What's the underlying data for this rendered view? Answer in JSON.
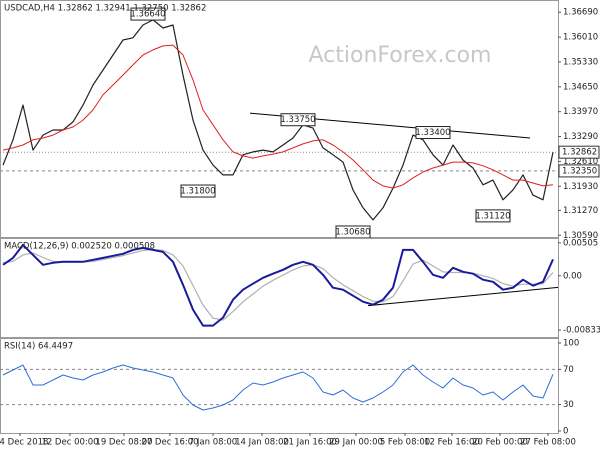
{
  "chart_data": [
    {
      "type": "line",
      "header": "USDCAD,H4  1.32862 1.32941 1.32750 1.32862",
      "watermark": "ActionForex.com",
      "xlim": [
        -0.3,
        55.5
      ],
      "ylim": [
        1.3057,
        1.3697
      ],
      "yticks": [
        {
          "value": 1.3669,
          "label": "1.36690"
        },
        {
          "value": 1.3601,
          "label": "1.36010"
        },
        {
          "value": 1.3533,
          "label": "1.35330"
        },
        {
          "value": 1.3465,
          "label": "1.34650"
        },
        {
          "value": 1.3397,
          "label": "1.33970"
        },
        {
          "value": 1.3329,
          "label": "1.33290"
        },
        {
          "value": 1.3261,
          "label": "1.32610"
        },
        {
          "value": 1.3193,
          "label": "1.31930"
        },
        {
          "value": 1.3127,
          "label": "1.31270"
        },
        {
          "value": 1.3059,
          "label": "1.30590"
        }
      ],
      "x": [
        0,
        1,
        2,
        3,
        4,
        5,
        6,
        7,
        8,
        9,
        10,
        11,
        12,
        13,
        14,
        15,
        16,
        17,
        18,
        19,
        20,
        21,
        22,
        23,
        24,
        25,
        26,
        27,
        28,
        29,
        30,
        31,
        32,
        33,
        34,
        35,
        36,
        37,
        38,
        39,
        40,
        41,
        42,
        43,
        44,
        45,
        46,
        47,
        48,
        49,
        50,
        51,
        52,
        53,
        54,
        55
      ],
      "series": [
        {
          "color": "#222222",
          "width": 1.2,
          "values": [
            1.3251,
            1.332,
            1.3415,
            1.3292,
            1.3333,
            1.3347,
            1.3347,
            1.3369,
            1.3415,
            1.347,
            1.3511,
            1.3552,
            1.3593,
            1.3599,
            1.3634,
            1.3648,
            1.3626,
            1.3634,
            1.3497,
            1.3374,
            1.3292,
            1.3251,
            1.3224,
            1.3224,
            1.3279,
            1.3287,
            1.3292,
            1.3287,
            1.3306,
            1.3325,
            1.3361,
            1.3352,
            1.3298,
            1.3279,
            1.3259,
            1.3183,
            1.3134,
            1.3101,
            1.3134,
            1.3188,
            1.3251,
            1.3333,
            1.332,
            1.3279,
            1.3251,
            1.3306,
            1.3265,
            1.3243,
            1.3197,
            1.321,
            1.3156,
            1.3183,
            1.3224,
            1.3169,
            1.3156,
            1.3286
          ]
        },
        {
          "color": "#e02020",
          "width": 1,
          "values": [
            1.3292,
            1.3298,
            1.3306,
            1.332,
            1.3325,
            1.3333,
            1.3347,
            1.3355,
            1.3374,
            1.3402,
            1.3443,
            1.347,
            1.3497,
            1.3525,
            1.3552,
            1.3566,
            1.3577,
            1.3579,
            1.3552,
            1.3484,
            1.3402,
            1.3361,
            1.332,
            1.3287,
            1.3276,
            1.327,
            1.3276,
            1.3281,
            1.3287,
            1.3298,
            1.3309,
            1.3317,
            1.332,
            1.3306,
            1.3287,
            1.3265,
            1.3238,
            1.321,
            1.3194,
            1.3188,
            1.3197,
            1.3216,
            1.3232,
            1.3243,
            1.3251,
            1.3259,
            1.3259,
            1.3257,
            1.3249,
            1.3238,
            1.3224,
            1.321,
            1.321,
            1.3202,
            1.3194,
            1.3197
          ]
        }
      ],
      "levels": [
        {
          "value": 1.32862,
          "label": "1.32862",
          "style": "dotted"
        },
        {
          "value": 1.3235,
          "label": "1.32350",
          "style": "dashed"
        }
      ],
      "trendlines": [
        {
          "x": [
            24.7,
            52.7
          ],
          "values": [
            1.3393,
            1.3325
          ],
          "color": "#000000"
        }
      ],
      "annotations": [
        {
          "x": 14.5,
          "value": 1.3664,
          "label": "1.36640"
        },
        {
          "x": 29.5,
          "value": 1.3375,
          "label": "1.33750"
        },
        {
          "x": 43,
          "value": 1.334,
          "label": "1.33400"
        },
        {
          "x": 19.5,
          "value": 1.318,
          "label": "1.31800"
        },
        {
          "x": 35,
          "value": 1.3068,
          "label": "1.30680"
        },
        {
          "x": 49,
          "value": 1.3112,
          "label": "1.31120"
        }
      ]
    },
    {
      "type": "line",
      "header": "MACD(12,26,9) 0.002520 0.000508",
      "xlim": [
        -0.3,
        55.5
      ],
      "ylim": [
        -0.00925,
        0.0058
      ],
      "yticks": [
        0.00505,
        {
          "value": 0,
          "label": "0.00"
        },
        -0.008332
      ],
      "x": [
        0,
        1,
        2,
        3,
        4,
        5,
        6,
        7,
        8,
        9,
        10,
        11,
        12,
        13,
        14,
        15,
        16,
        17,
        18,
        19,
        20,
        21,
        22,
        23,
        24,
        25,
        26,
        27,
        28,
        29,
        30,
        31,
        32,
        33,
        34,
        35,
        36,
        37,
        38,
        39,
        40,
        41,
        42,
        43,
        44,
        45,
        46,
        47,
        48,
        49,
        50,
        51,
        52,
        53,
        54,
        55
      ],
      "series": [
        {
          "color": "#b0b0b0",
          "width": 1.2,
          "values": [
            0.002,
            0.0022,
            0.0032,
            0.0035,
            0.0028,
            0.0022,
            0.0021,
            0.0021,
            0.0021,
            0.0022,
            0.0025,
            0.0028,
            0.0031,
            0.0035,
            0.0039,
            0.004,
            0.0039,
            0.0032,
            0.0015,
            -0.0015,
            -0.0045,
            -0.0065,
            -0.0068,
            -0.0055,
            -0.004,
            -0.0028,
            -0.0016,
            -0.0007,
            0.0001,
            0.0009,
            0.0015,
            0.0017,
            0.0011,
            -0.0003,
            -0.0014,
            -0.0023,
            -0.0032,
            -0.0039,
            -0.004,
            -0.0032,
            -0.0008,
            0.0018,
            0.0024,
            0.0015,
            0.0006,
            0.0005,
            0.0005,
            0.0004,
            0,
            -0.0004,
            -0.0012,
            -0.0016,
            -0.0013,
            -0.0013,
            -0.0012,
            0.0005
          ]
        },
        {
          "color": "#1a1a9c",
          "width": 2,
          "values": [
            0.00168,
            0.00275,
            0.00474,
            0.00321,
            0.00168,
            0.00199,
            0.00214,
            0.00214,
            0.00214,
            0.00245,
            0.00275,
            0.00306,
            0.00337,
            0.00398,
            0.00428,
            0.00398,
            0.00367,
            0.00214,
            -0.00138,
            -0.0052,
            -0.00765,
            -0.00765,
            -0.00643,
            -0.00367,
            -0.00214,
            -0.00122,
            -0.00031,
            0.00031,
            0.00092,
            0.00168,
            0.00214,
            0.00168,
            0.00015,
            -0.00184,
            -0.00214,
            -0.00306,
            -0.00398,
            -0.00444,
            -0.00367,
            -0.00184,
            0.00398,
            0.00398,
            0.00214,
            0.00015,
            -0.00031,
            0.00122,
            0.00061,
            0.00031,
            -0.00061,
            -0.00092,
            -0.00214,
            -0.00184,
            -0.00061,
            -0.00153,
            -0.00092,
            0.00252
          ]
        }
      ],
      "trendlines": [
        {
          "x": [
            36.5,
            55.5
          ],
          "values": [
            -0.00459,
            -0.00179
          ],
          "color": "#000000"
        }
      ]
    },
    {
      "type": "line",
      "header": "RSI(14) 64.4497",
      "xlim": [
        -0.3,
        55.5
      ],
      "ylim": [
        0,
        100
      ],
      "yticks": [
        100,
        70,
        30,
        0
      ],
      "levels": [
        70,
        30
      ],
      "x": [
        0,
        1,
        2,
        3,
        4,
        5,
        6,
        7,
        8,
        9,
        10,
        11,
        12,
        13,
        14,
        15,
        16,
        17,
        18,
        19,
        20,
        21,
        22,
        23,
        24,
        25,
        26,
        27,
        28,
        29,
        30,
        31,
        32,
        33,
        34,
        35,
        36,
        37,
        38,
        39,
        40,
        41,
        42,
        43,
        44,
        45,
        46,
        47,
        48,
        49,
        50,
        51,
        52,
        53,
        54,
        55
      ],
      "series": [
        {
          "color": "#2f6fd6",
          "width": 1,
          "values": [
            63.6,
            69.3,
            75,
            52.3,
            52.3,
            58,
            63.6,
            60.2,
            58,
            63.6,
            67,
            71.6,
            75,
            71.6,
            69.3,
            67,
            63.6,
            60.2,
            40.9,
            29.5,
            23.9,
            26.1,
            29.5,
            35.2,
            46.6,
            54.5,
            52.3,
            55.7,
            60.2,
            63.6,
            67,
            60.2,
            44.3,
            40.9,
            46.6,
            37.5,
            33,
            37.5,
            44.3,
            52.3,
            67,
            75,
            63.6,
            55.7,
            48.9,
            60.2,
            52.3,
            48.9,
            40.9,
            44.3,
            35.2,
            44.3,
            52.3,
            39.8,
            37.5,
            64.4
          ]
        }
      ],
      "xticks": [
        {
          "value": 1.7,
          "label": "4 Dec 2018"
        },
        {
          "value": 6.7,
          "label": "12 Dec 00:00"
        },
        {
          "value": 12.1,
          "label": "19 Dec 08:00"
        },
        {
          "value": 16.7,
          "label": "27 Dec 16:00"
        },
        {
          "value": 21,
          "label": "7 Jan 08:00"
        },
        {
          "value": 25.9,
          "label": "14 Jan 08:00"
        },
        {
          "value": 30.7,
          "label": "21 Jan 16:00"
        },
        {
          "value": 35.3,
          "label": "29 Jan 00:00"
        },
        {
          "value": 40.2,
          "label": "5 Feb 08:00"
        },
        {
          "value": 44.9,
          "label": "12 Feb 16:00"
        },
        {
          "value": 49.7,
          "label": "20 Feb 00:00"
        },
        {
          "value": 54.5,
          "label": "27 Feb 08:00"
        }
      ]
    }
  ]
}
